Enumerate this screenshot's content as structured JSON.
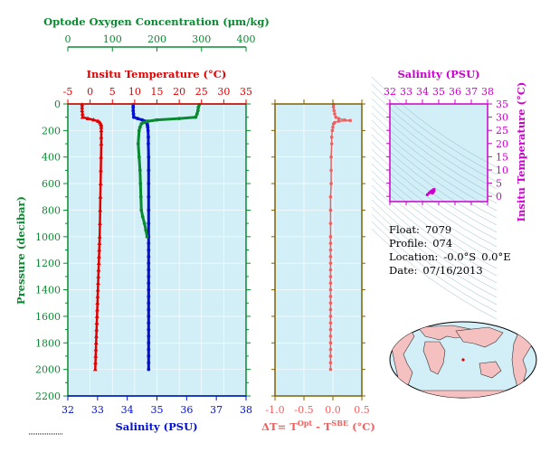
{
  "colors": {
    "oxygen": "#0a8a30",
    "temperature": "#e00000",
    "salinity": "#0010d0",
    "salinity_ts": "#cc00cc",
    "delta_t": "#f06060",
    "panel_bg": "#d2eff8",
    "axis_olive": "#806000"
  },
  "chart_data": [
    {
      "type": "line",
      "title": "",
      "oxygen_axis": {
        "label": "Optode Oxygen Concentration (μm/kg)",
        "range": [
          0,
          400
        ],
        "ticks": [
          "0",
          "100",
          "200",
          "300",
          "400"
        ]
      },
      "temperature_axis": {
        "label": "Insitu Temperature (°C)",
        "range": [
          -5,
          35
        ],
        "ticks": [
          "-5",
          "0",
          "5",
          "10",
          "15",
          "20",
          "25",
          "30",
          "35"
        ]
      },
      "salinity_axis": {
        "label": "Salinity (PSU)",
        "range": [
          32,
          38
        ],
        "ticks": [
          "32",
          "33",
          "34",
          "35",
          "36",
          "37",
          "38"
        ]
      },
      "pressure_axis": {
        "label": "Pressure (decibar)",
        "range": [
          0,
          2200
        ],
        "inverted": true,
        "ticks": [
          "0",
          "200",
          "400",
          "600",
          "800",
          "1000",
          "1200",
          "1400",
          "1600",
          "1800",
          "2000",
          "2200"
        ]
      },
      "series": [
        {
          "key": "temperature",
          "pressure": [
            5,
            25,
            50,
            75,
            100,
            110,
            120,
            130,
            140,
            150,
            160,
            175,
            200,
            250,
            300,
            400,
            500,
            600,
            700,
            800,
            900,
            1000,
            1050,
            1100,
            1150,
            1200,
            1250,
            1300,
            1350,
            1400,
            1450,
            1500,
            1550,
            1600,
            1650,
            1700,
            1750,
            1800,
            1850,
            1900,
            1950,
            2000
          ],
          "values": [
            -1.8,
            -1.8,
            -1.8,
            -1.7,
            -1.7,
            -0.5,
            0.8,
            1.8,
            2.2,
            2.4,
            2.5,
            2.5,
            2.5,
            2.5,
            2.5,
            2.45,
            2.4,
            2.35,
            2.3,
            2.25,
            2.2,
            2.15,
            2.1,
            2.05,
            2.0,
            1.95,
            1.9,
            1.85,
            1.8,
            1.75,
            1.7,
            1.65,
            1.6,
            1.55,
            1.5,
            1.45,
            1.4,
            1.35,
            1.3,
            1.25,
            1.2,
            1.15
          ]
        },
        {
          "key": "salinity",
          "pressure": [
            5,
            25,
            50,
            75,
            100,
            110,
            120,
            130,
            140,
            150,
            160,
            175,
            200,
            250,
            300,
            400,
            500,
            600,
            700,
            800,
            900,
            1000,
            1050,
            1100,
            1150,
            1200,
            1250,
            1300,
            1350,
            1400,
            1450,
            1500,
            1550,
            1600,
            1650,
            1700,
            1750,
            1800,
            1850,
            1900,
            1950,
            2000
          ],
          "values": [
            34.2,
            34.2,
            34.2,
            34.21,
            34.22,
            34.35,
            34.5,
            34.6,
            34.65,
            34.67,
            34.68,
            34.69,
            34.7,
            34.71,
            34.71,
            34.72,
            34.72,
            34.72,
            34.72,
            34.72,
            34.72,
            34.72,
            34.72,
            34.72,
            34.72,
            34.72,
            34.72,
            34.72,
            34.72,
            34.72,
            34.72,
            34.72,
            34.72,
            34.72,
            34.72,
            34.72,
            34.72,
            34.72,
            34.72,
            34.72,
            34.72,
            34.72
          ]
        },
        {
          "key": "oxygen",
          "pressure": [
            5,
            25,
            50,
            75,
            100,
            110,
            120,
            130,
            140,
            150,
            175,
            200,
            300,
            400,
            500,
            600,
            700,
            800,
            850,
            900,
            950,
            1000
          ],
          "values": [
            295,
            293,
            292,
            290,
            287,
            250,
            200,
            180,
            170,
            165,
            162,
            160,
            158,
            160,
            162,
            163,
            164,
            165,
            168,
            172,
            175,
            178
          ]
        }
      ]
    },
    {
      "type": "line",
      "title": "",
      "xlabel": "ΔT= T^Opt - T^SBE (°C)",
      "x_axis": {
        "range": [
          -1.0,
          0.5
        ],
        "ticks": [
          "-1.0",
          "-0.5",
          "0.0",
          "0.5"
        ]
      },
      "y_axis": {
        "range": [
          0,
          2200
        ],
        "inverted": true
      },
      "series": [
        {
          "key": "delta_t",
          "pressure": [
            5,
            25,
            50,
            75,
            100,
            110,
            120,
            125,
            130,
            140,
            150,
            175,
            200,
            250,
            300,
            400,
            500,
            600,
            700,
            800,
            900,
            1000,
            1050,
            1100,
            1150,
            1200,
            1250,
            1300,
            1350,
            1400,
            1450,
            1500,
            1550,
            1600,
            1650,
            1700,
            1750,
            1800,
            1850,
            1900,
            1950,
            2000
          ],
          "values": [
            0.01,
            0.01,
            0.02,
            0.03,
            0.05,
            0.1,
            0.2,
            0.3,
            0.1,
            0.03,
            0.01,
            0.0,
            -0.01,
            -0.02,
            -0.02,
            -0.03,
            -0.03,
            -0.03,
            -0.04,
            -0.04,
            -0.04,
            -0.04,
            -0.04,
            -0.04,
            -0.04,
            -0.04,
            -0.04,
            -0.04,
            -0.04,
            -0.04,
            -0.04,
            -0.04,
            -0.04,
            -0.04,
            -0.04,
            -0.04,
            -0.04,
            -0.04,
            -0.04,
            -0.04,
            -0.04,
            -0.04
          ]
        }
      ]
    },
    {
      "type": "scatter",
      "title": "",
      "xlabel": "Salinity (PSU)",
      "ylabel": "Insitu Temperature (°C)",
      "x_axis": {
        "range": [
          32,
          38
        ],
        "ticks": [
          "32",
          "33",
          "34",
          "35",
          "36",
          "37",
          "38"
        ]
      },
      "y_axis": {
        "range": [
          -2,
          35
        ],
        "ticks": [
          "0",
          "5",
          "10",
          "15",
          "20",
          "25",
          "30",
          "35"
        ]
      },
      "points": [
        [
          34.6,
          1.2
        ],
        [
          34.65,
          1.5
        ],
        [
          34.68,
          1.8
        ],
        [
          34.7,
          2.0
        ],
        [
          34.72,
          2.3
        ],
        [
          34.72,
          2.5
        ],
        [
          34.7,
          2.6
        ],
        [
          34.68,
          2.5
        ],
        [
          34.6,
          2.2
        ],
        [
          34.5,
          1.8
        ],
        [
          34.4,
          1.2
        ],
        [
          34.3,
          0.6
        ]
      ]
    }
  ],
  "info": {
    "float_label": "Float:",
    "float_value": "7079",
    "profile_label": "Profile:",
    "profile_value": "074",
    "location_label": "Location:",
    "location_lat": "-0.0°S",
    "location_lon": "0.0°E",
    "date_label": "Date:",
    "date_value": "07/16/2013"
  },
  "map": {
    "marker": "float-position"
  }
}
